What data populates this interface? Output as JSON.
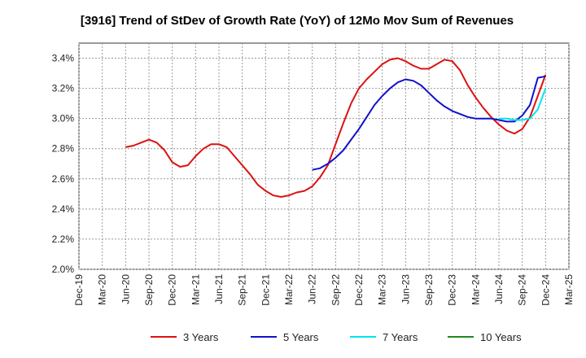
{
  "chart_data": {
    "type": "line",
    "title": "[3916]  Trend of StDev of Growth Rate (YoY) of 12Mo Mov Sum of Revenues",
    "xlabel": "",
    "ylabel": "",
    "ylim": [
      2.0,
      3.5
    ],
    "yticks": [
      "2.0%",
      "2.2%",
      "2.4%",
      "2.6%",
      "2.8%",
      "3.0%",
      "3.2%",
      "3.4%"
    ],
    "ytick_values": [
      2.0,
      2.2,
      2.4,
      2.6,
      2.8,
      3.0,
      3.2,
      3.4
    ],
    "xticks": [
      "Dec-19",
      "Mar-20",
      "Jun-20",
      "Sep-20",
      "Dec-20",
      "Mar-21",
      "Jun-21",
      "Sep-21",
      "Dec-21",
      "Mar-22",
      "Jun-22",
      "Sep-22",
      "Dec-22",
      "Mar-23",
      "Jun-23",
      "Sep-23",
      "Dec-23",
      "Mar-24",
      "Jun-24",
      "Sep-24",
      "Dec-24",
      "Mar-25"
    ],
    "x_range_months": [
      0,
      63
    ],
    "grid": true,
    "legend_position": "bottom",
    "series": [
      {
        "name": "3 Years",
        "color": "#dd1111",
        "x": [
          6,
          7,
          8,
          9,
          10,
          11,
          12,
          13,
          14,
          15,
          16,
          17,
          18,
          19,
          20,
          21,
          22,
          23,
          24,
          25,
          26,
          27,
          28,
          29,
          30,
          31,
          32,
          33,
          34,
          35,
          36,
          37,
          38,
          39,
          40,
          41,
          42,
          43,
          44,
          45,
          46,
          47,
          48,
          49,
          50,
          51,
          52,
          53,
          54,
          55,
          56,
          57,
          58,
          59,
          60
        ],
        "values": [
          2.81,
          2.82,
          2.84,
          2.86,
          2.84,
          2.79,
          2.71,
          2.68,
          2.69,
          2.75,
          2.8,
          2.83,
          2.83,
          2.81,
          2.75,
          2.69,
          2.63,
          2.56,
          2.52,
          2.49,
          2.48,
          2.49,
          2.51,
          2.52,
          2.55,
          2.61,
          2.69,
          2.83,
          2.97,
          3.1,
          3.2,
          3.26,
          3.31,
          3.36,
          3.39,
          3.4,
          3.38,
          3.35,
          3.33,
          3.33,
          3.36,
          3.39,
          3.38,
          3.32,
          3.22,
          3.14,
          3.07,
          3.01,
          2.96,
          2.92,
          2.9,
          2.93,
          3.01,
          3.15,
          3.29
        ]
      },
      {
        "name": "5 Years",
        "color": "#1111cc",
        "x": [
          30,
          31,
          32,
          33,
          34,
          35,
          36,
          37,
          38,
          39,
          40,
          41,
          42,
          43,
          44,
          45,
          46,
          47,
          48,
          49,
          50,
          51,
          52,
          53,
          54,
          55,
          56,
          57,
          58,
          59,
          60
        ],
        "values": [
          2.66,
          2.67,
          2.7,
          2.74,
          2.79,
          2.86,
          2.93,
          3.01,
          3.09,
          3.15,
          3.2,
          3.24,
          3.26,
          3.25,
          3.22,
          3.17,
          3.12,
          3.08,
          3.05,
          3.03,
          3.01,
          3.0,
          3.0,
          3.0,
          2.99,
          2.98,
          2.98,
          3.02,
          3.09,
          3.27,
          3.28
        ]
      },
      {
        "name": "7 Years",
        "color": "#00e5ee",
        "x": [
          54,
          55,
          56,
          57,
          58,
          59,
          60
        ],
        "values": [
          3.0,
          3.0,
          2.99,
          2.99,
          3.0,
          3.06,
          3.2
        ]
      },
      {
        "name": "10 Years",
        "color": "#228822",
        "x": [],
        "values": []
      }
    ]
  }
}
